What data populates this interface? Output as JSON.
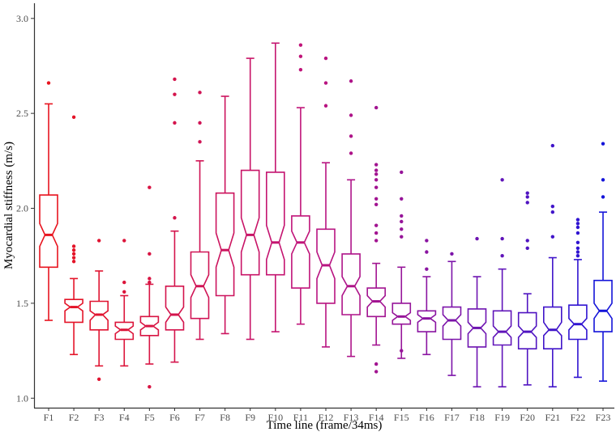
{
  "chart_data": {
    "type": "boxplot",
    "notched": true,
    "xlabel": "Time line (frame/34ms)",
    "ylabel": "Myocardial stiffness (m/s)",
    "ylim": [
      0.95,
      3.08
    ],
    "yticks": [
      "1.0",
      "1.5",
      "2.0",
      "2.5",
      "3.0"
    ],
    "ytick_values": [
      1.0,
      1.5,
      2.0,
      2.5,
      3.0
    ],
    "categories": [
      "F1",
      "F2",
      "F3",
      "F4",
      "F5",
      "F6",
      "F7",
      "F8",
      "F9",
      "F10",
      "F11",
      "F12",
      "F13",
      "F14",
      "F15",
      "F16",
      "F17",
      "F18",
      "F19",
      "F20",
      "F21",
      "F22",
      "F23"
    ],
    "colors": [
      "#e8141f",
      "#e41428",
      "#e01431",
      "#dc143a",
      "#d81443",
      "#d4144c",
      "#d01455",
      "#cc145e",
      "#c81467",
      "#c41470",
      "#c01479",
      "#b81481",
      "#ae1489",
      "#a21491",
      "#961499",
      "#8a14a1",
      "#7c14a9",
      "#6e14b1",
      "#6014b9",
      "#5014c1",
      "#4014c9",
      "#3014d1",
      "#1414d9"
    ],
    "boxes": [
      {
        "label": "F1",
        "lower_whisker": 1.41,
        "q1": 1.69,
        "median": 1.86,
        "q3": 2.07,
        "upper_whisker": 2.55,
        "notch_low": 1.8,
        "notch_high": 1.92,
        "outliers": [
          2.66
        ]
      },
      {
        "label": "F2",
        "lower_whisker": 1.23,
        "q1": 1.4,
        "median": 1.48,
        "q3": 1.52,
        "upper_whisker": 1.63,
        "notch_low": 1.46,
        "notch_high": 1.5,
        "outliers": [
          1.72,
          1.74,
          1.76,
          1.78,
          1.8,
          2.48
        ]
      },
      {
        "label": "F3",
        "lower_whisker": 1.17,
        "q1": 1.36,
        "median": 1.44,
        "q3": 1.51,
        "upper_whisker": 1.67,
        "notch_low": 1.41,
        "notch_high": 1.46,
        "outliers": [
          1.1,
          1.83
        ]
      },
      {
        "label": "F4",
        "lower_whisker": 1.17,
        "q1": 1.31,
        "median": 1.36,
        "q3": 1.4,
        "upper_whisker": 1.54,
        "notch_low": 1.34,
        "notch_high": 1.38,
        "outliers": [
          1.56,
          1.61,
          1.83
        ]
      },
      {
        "label": "F5",
        "lower_whisker": 1.18,
        "q1": 1.33,
        "median": 1.38,
        "q3": 1.43,
        "upper_whisker": 1.6,
        "notch_low": 1.36,
        "notch_high": 1.4,
        "outliers": [
          1.06,
          1.61,
          1.63,
          1.76,
          2.11
        ]
      },
      {
        "label": "F6",
        "lower_whisker": 1.19,
        "q1": 1.36,
        "median": 1.44,
        "q3": 1.59,
        "upper_whisker": 1.88,
        "notch_low": 1.4,
        "notch_high": 1.48,
        "outliers": [
          1.95,
          2.45,
          2.6,
          2.68
        ]
      },
      {
        "label": "F7",
        "lower_whisker": 1.31,
        "q1": 1.42,
        "median": 1.59,
        "q3": 1.77,
        "upper_whisker": 2.25,
        "notch_low": 1.53,
        "notch_high": 1.65,
        "outliers": [
          2.35,
          2.45,
          2.61
        ]
      },
      {
        "label": "F8",
        "lower_whisker": 1.34,
        "q1": 1.54,
        "median": 1.78,
        "q3": 2.08,
        "upper_whisker": 2.59,
        "notch_low": 1.69,
        "notch_high": 1.87,
        "outliers": []
      },
      {
        "label": "F9",
        "lower_whisker": 1.31,
        "q1": 1.65,
        "median": 1.86,
        "q3": 2.2,
        "upper_whisker": 2.79,
        "notch_low": 1.77,
        "notch_high": 1.95,
        "outliers": []
      },
      {
        "label": "F10",
        "lower_whisker": 1.35,
        "q1": 1.65,
        "median": 1.82,
        "q3": 2.19,
        "upper_whisker": 2.87,
        "notch_low": 1.73,
        "notch_high": 1.91,
        "outliers": []
      },
      {
        "label": "F11",
        "lower_whisker": 1.39,
        "q1": 1.58,
        "median": 1.82,
        "q3": 1.96,
        "upper_whisker": 2.53,
        "notch_low": 1.76,
        "notch_high": 1.88,
        "outliers": [
          2.73,
          2.8,
          2.86
        ]
      },
      {
        "label": "F12",
        "lower_whisker": 1.27,
        "q1": 1.5,
        "median": 1.7,
        "q3": 1.89,
        "upper_whisker": 2.24,
        "notch_low": 1.63,
        "notch_high": 1.77,
        "outliers": [
          2.54,
          2.66,
          2.79
        ]
      },
      {
        "label": "F13",
        "lower_whisker": 1.22,
        "q1": 1.44,
        "median": 1.59,
        "q3": 1.76,
        "upper_whisker": 2.15,
        "notch_low": 1.54,
        "notch_high": 1.64,
        "outliers": [
          2.29,
          2.38,
          2.49,
          2.67
        ]
      },
      {
        "label": "F14",
        "lower_whisker": 1.28,
        "q1": 1.43,
        "median": 1.51,
        "q3": 1.58,
        "upper_whisker": 1.71,
        "notch_low": 1.48,
        "notch_high": 1.54,
        "outliers": [
          1.14,
          1.18,
          1.83,
          1.87,
          1.91,
          2.02,
          2.05,
          2.11,
          2.15,
          2.18,
          2.2,
          2.23,
          2.53
        ]
      },
      {
        "label": "F15",
        "lower_whisker": 1.21,
        "q1": 1.39,
        "median": 1.43,
        "q3": 1.5,
        "upper_whisker": 1.69,
        "notch_low": 1.41,
        "notch_high": 1.45,
        "outliers": [
          1.25,
          1.85,
          1.89,
          1.93,
          1.96,
          2.05,
          2.19
        ]
      },
      {
        "label": "F16",
        "lower_whisker": 1.23,
        "q1": 1.35,
        "median": 1.42,
        "q3": 1.46,
        "upper_whisker": 1.64,
        "notch_low": 1.4,
        "notch_high": 1.44,
        "outliers": [
          1.68,
          1.77,
          1.83
        ]
      },
      {
        "label": "F17",
        "lower_whisker": 1.12,
        "q1": 1.31,
        "median": 1.41,
        "q3": 1.48,
        "upper_whisker": 1.72,
        "notch_low": 1.38,
        "notch_high": 1.44,
        "outliers": [
          1.76
        ]
      },
      {
        "label": "F18",
        "lower_whisker": 1.06,
        "q1": 1.27,
        "median": 1.37,
        "q3": 1.47,
        "upper_whisker": 1.64,
        "notch_low": 1.34,
        "notch_high": 1.4,
        "outliers": [
          1.84
        ]
      },
      {
        "label": "F19",
        "lower_whisker": 1.06,
        "q1": 1.28,
        "median": 1.35,
        "q3": 1.46,
        "upper_whisker": 1.68,
        "notch_low": 1.32,
        "notch_high": 1.38,
        "outliers": [
          1.75,
          1.84,
          2.15
        ]
      },
      {
        "label": "F20",
        "lower_whisker": 1.07,
        "q1": 1.26,
        "median": 1.35,
        "q3": 1.45,
        "upper_whisker": 1.55,
        "notch_low": 1.32,
        "notch_high": 1.38,
        "outliers": [
          1.79,
          1.83,
          2.03,
          2.06,
          2.08
        ]
      },
      {
        "label": "F21",
        "lower_whisker": 1.06,
        "q1": 1.26,
        "median": 1.36,
        "q3": 1.48,
        "upper_whisker": 1.74,
        "notch_low": 1.33,
        "notch_high": 1.4,
        "outliers": [
          1.85,
          1.98,
          2.01,
          2.33
        ]
      },
      {
        "label": "F22",
        "lower_whisker": 1.11,
        "q1": 1.31,
        "median": 1.39,
        "q3": 1.49,
        "upper_whisker": 1.73,
        "notch_low": 1.36,
        "notch_high": 1.42,
        "outliers": [
          1.75,
          1.77,
          1.79,
          1.82,
          1.87,
          1.9,
          1.92,
          1.94
        ]
      },
      {
        "label": "F23",
        "lower_whisker": 1.09,
        "q1": 1.35,
        "median": 1.46,
        "q3": 1.62,
        "upper_whisker": 1.98,
        "notch_low": 1.42,
        "notch_high": 1.5,
        "outliers": [
          2.06,
          2.15,
          2.34
        ]
      }
    ]
  }
}
